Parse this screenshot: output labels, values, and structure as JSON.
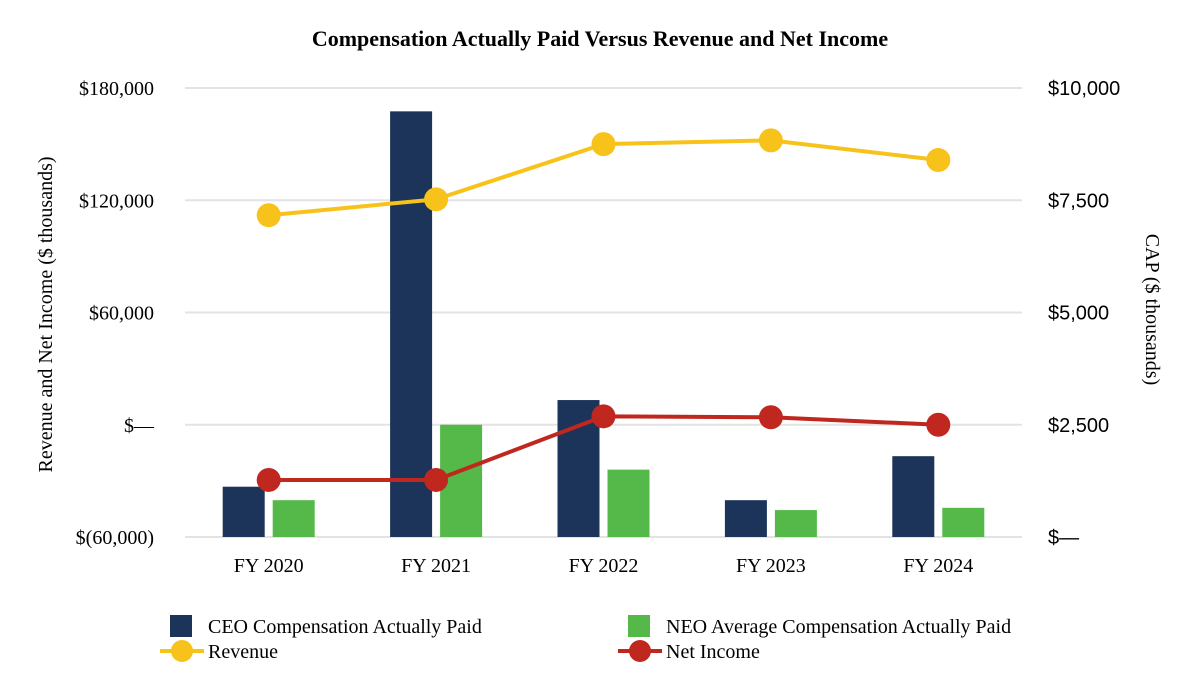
{
  "chart_data": {
    "type": "bar",
    "title": "Compensation Actually Paid Versus Revenue and Net Income",
    "categories": [
      "FY 2020",
      "FY 2021",
      "FY 2022",
      "FY 2023",
      "FY 2024"
    ],
    "y_left": {
      "label": "Revenue and Net Income ($ thousands)",
      "range": [
        -60000,
        180000
      ],
      "ticks": [
        {
          "value": -60000,
          "label": "$(60,000)"
        },
        {
          "value": 0,
          "label": "$—"
        },
        {
          "value": 60000,
          "label": "$60,000"
        },
        {
          "value": 120000,
          "label": "$120,000"
        },
        {
          "value": 180000,
          "label": "$180,000"
        }
      ]
    },
    "y_right": {
      "label": "CAP ($ thousands)",
      "range": [
        0,
        10000
      ],
      "ticks": [
        {
          "value": 0,
          "label": "$—"
        },
        {
          "value": 2500,
          "label": "$2,500"
        },
        {
          "value": 5000,
          "label": "$5,000"
        },
        {
          "value": 7500,
          "label": "$7,500"
        },
        {
          "value": 10000,
          "label": "$10,000"
        }
      ]
    },
    "grid": true,
    "legend_position": "bottom",
    "series": [
      {
        "name": "CEO Compensation Actually Paid",
        "type": "bar",
        "axis": "right",
        "color": "#1c3459",
        "values": [
          1120,
          9480,
          3050,
          820,
          1800
        ]
      },
      {
        "name": "NEO Average Compensation Actually Paid",
        "type": "bar",
        "axis": "right",
        "color": "#54b948",
        "values": [
          820,
          2500,
          1500,
          600,
          650
        ]
      },
      {
        "name": "Revenue",
        "type": "line",
        "axis": "left",
        "color": "#f7c31a",
        "values": [
          112000,
          120500,
          150000,
          152000,
          141500
        ]
      },
      {
        "name": "Net Income",
        "type": "line",
        "axis": "left",
        "color": "#c0271f",
        "values": [
          -29500,
          -29500,
          4500,
          4000,
          0
        ]
      }
    ]
  }
}
